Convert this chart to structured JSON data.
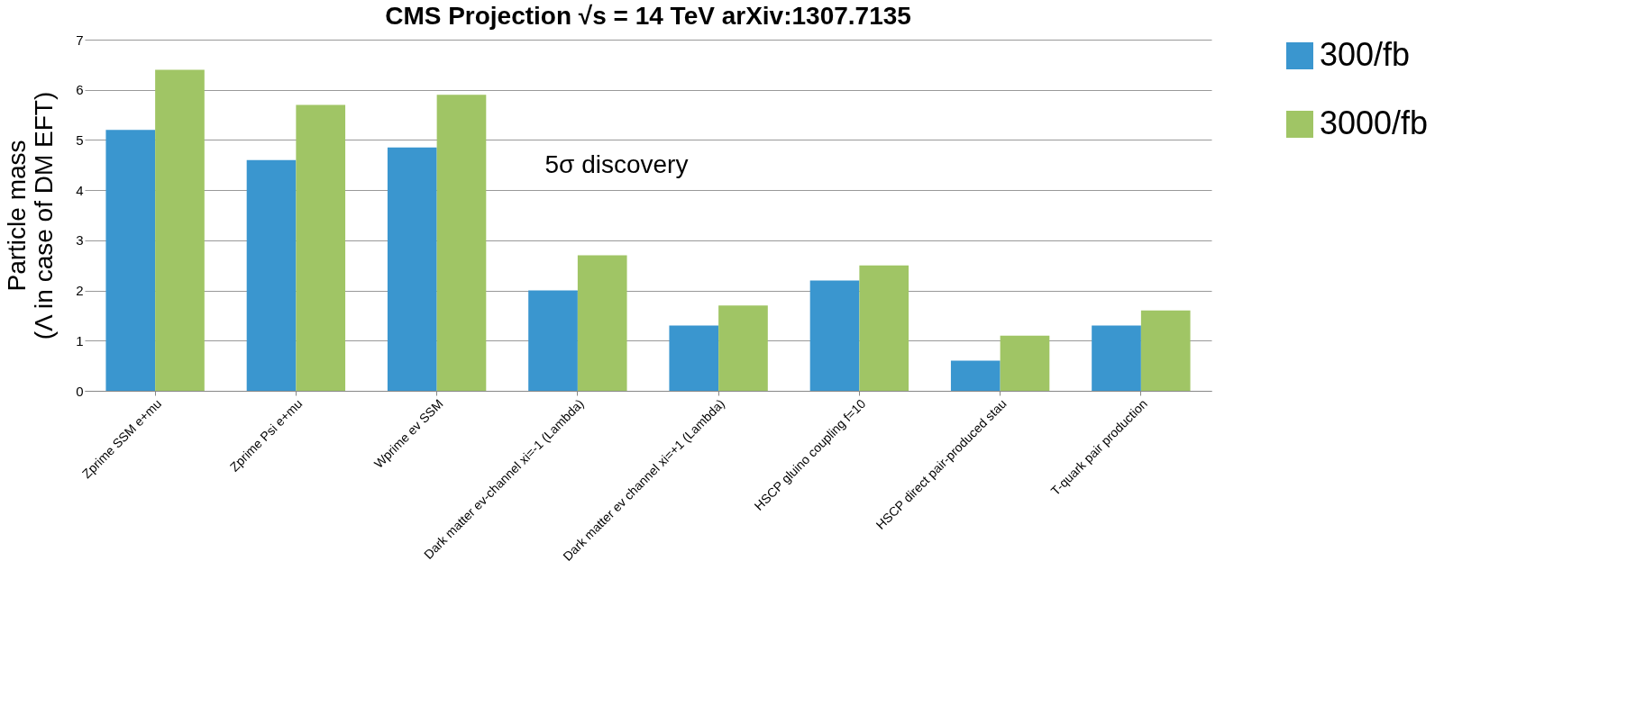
{
  "chart_data": {
    "type": "bar",
    "title": "CMS Projection     √s = 14 TeV     arXiv:1307.7135",
    "ylabel": "Particle mass\n(Λ in case of DM EFT)",
    "categories": [
      "Zprime SSM e+mu",
      "Zprime Psi e+mu",
      "Wprime ev SSM",
      "Dark matter ev-channel xi=-1 (Lambda)",
      "Dark matter ev channel xi=+1 (Lambda)",
      "HSCP gluino coupling f=10",
      "HSCP direct pair-produced stau",
      "T-quark pair production"
    ],
    "series": [
      {
        "name": "300/fb",
        "color": "#3a96cf",
        "values": [
          5.2,
          4.6,
          4.85,
          2.0,
          1.3,
          2.2,
          0.6,
          1.3
        ]
      },
      {
        "name": "3000/fb",
        "color": "#a0c565",
        "values": [
          6.4,
          5.7,
          5.9,
          2.7,
          1.7,
          2.5,
          1.1,
          1.6
        ]
      }
    ],
    "ylim": [
      0,
      7
    ],
    "yticks": [
      0,
      1,
      2,
      3,
      4,
      5,
      6,
      7
    ],
    "grid": "y",
    "legend": "right",
    "annotations": [
      "5σ discovery"
    ]
  }
}
